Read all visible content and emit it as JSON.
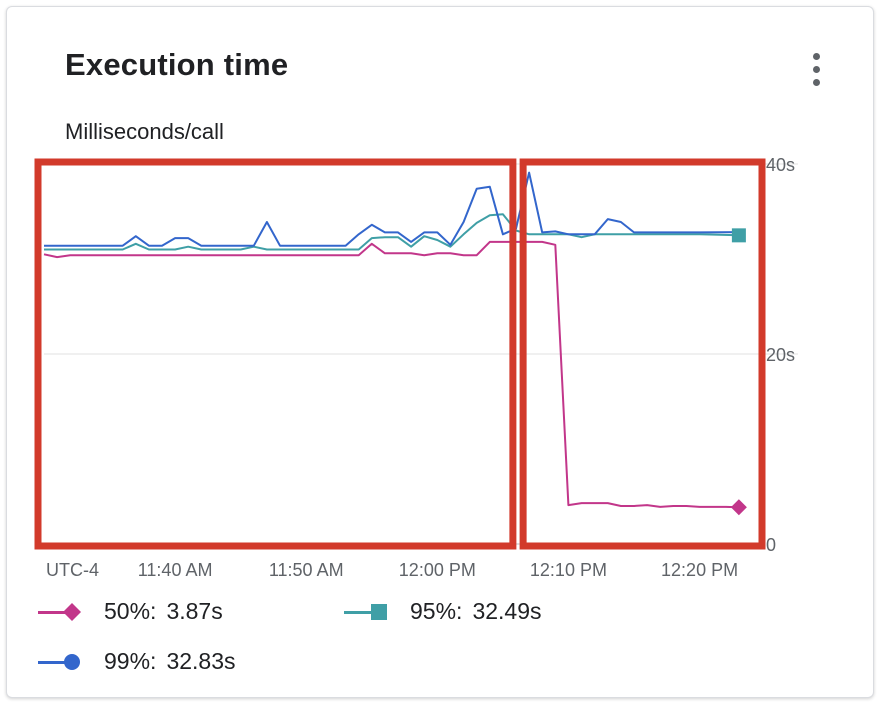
{
  "card": {
    "title": "Execution time",
    "subtitle": "Milliseconds/call",
    "menu_icon": "more-vert-icon"
  },
  "chart_data": {
    "type": "line",
    "timezone_label": "UTC-4",
    "x_range": [
      "11:30",
      "12:24"
    ],
    "x_ticks": [
      {
        "t": "11:40",
        "label": "11:40 AM"
      },
      {
        "t": "11:50",
        "label": "11:50 AM"
      },
      {
        "t": "12:00",
        "label": "12:00 PM"
      },
      {
        "t": "12:10",
        "label": "12:10 PM"
      },
      {
        "t": "12:20",
        "label": "12:20 PM"
      }
    ],
    "ylim": [
      0,
      40
    ],
    "y_ticks": [
      {
        "v": 0,
        "label": "0"
      },
      {
        "v": 20,
        "label": "20s"
      },
      {
        "v": 40,
        "label": "40s"
      }
    ],
    "grid": true,
    "legend_position": "bottom",
    "series": [
      {
        "name": "50%",
        "legend_value": "3.87s",
        "color": "#c2368a",
        "marker": "diamond",
        "points": [
          [
            "11:30",
            30.5
          ],
          [
            "11:31",
            30.2
          ],
          [
            "11:32",
            30.4
          ],
          [
            "11:40",
            30.4
          ],
          [
            "11:50",
            30.4
          ],
          [
            "11:54",
            30.4
          ],
          [
            "11:55",
            31.6
          ],
          [
            "11:56",
            30.6
          ],
          [
            "11:58",
            30.6
          ],
          [
            "11:59",
            30.4
          ],
          [
            "12:00",
            30.6
          ],
          [
            "12:01",
            30.6
          ],
          [
            "12:02",
            30.4
          ],
          [
            "12:03",
            30.4
          ],
          [
            "12:04",
            31.8
          ],
          [
            "12:06",
            31.8
          ],
          [
            "12:08",
            31.8
          ],
          [
            "12:09",
            31.5
          ],
          [
            "12:10",
            4.1
          ],
          [
            "12:11",
            4.3
          ],
          [
            "12:12",
            4.3
          ],
          [
            "12:13",
            4.3
          ],
          [
            "12:14",
            4.0
          ],
          [
            "12:15",
            4.0
          ],
          [
            "12:16",
            4.1
          ],
          [
            "12:17",
            3.9
          ],
          [
            "12:18",
            4.0
          ],
          [
            "12:19",
            4.0
          ],
          [
            "12:20",
            3.9
          ],
          [
            "12:22",
            3.9
          ],
          [
            "12:23",
            3.87
          ]
        ]
      },
      {
        "name": "95%",
        "legend_value": "32.49s",
        "color": "#3f9fa6",
        "marker": "square",
        "points": [
          [
            "11:30",
            31.0
          ],
          [
            "11:36",
            31.0
          ],
          [
            "11:37",
            31.6
          ],
          [
            "11:38",
            31.0
          ],
          [
            "11:40",
            31.0
          ],
          [
            "11:41",
            31.3
          ],
          [
            "11:42",
            31.0
          ],
          [
            "11:45",
            31.0
          ],
          [
            "11:46",
            31.3
          ],
          [
            "11:47",
            31.0
          ],
          [
            "11:54",
            31.0
          ],
          [
            "11:55",
            32.2
          ],
          [
            "11:56",
            32.3
          ],
          [
            "11:57",
            32.3
          ],
          [
            "11:58",
            31.3
          ],
          [
            "11:59",
            32.4
          ],
          [
            "12:00",
            32.0
          ],
          [
            "12:01",
            31.3
          ],
          [
            "12:02",
            32.6
          ],
          [
            "12:03",
            33.8
          ],
          [
            "12:04",
            34.6
          ],
          [
            "12:05",
            34.7
          ],
          [
            "12:06",
            33.0
          ],
          [
            "12:07",
            32.6
          ],
          [
            "12:08",
            32.6
          ],
          [
            "12:09",
            32.6
          ],
          [
            "12:10",
            32.6
          ],
          [
            "12:11",
            32.3
          ],
          [
            "12:12",
            32.6
          ],
          [
            "12:13",
            32.6
          ],
          [
            "12:15",
            32.6
          ],
          [
            "12:18",
            32.6
          ],
          [
            "12:20",
            32.6
          ],
          [
            "12:23",
            32.49
          ]
        ]
      },
      {
        "name": "99%",
        "legend_value": "32.83s",
        "color": "#3366cc",
        "marker": "circle",
        "points": [
          [
            "11:30",
            31.4
          ],
          [
            "11:36",
            31.4
          ],
          [
            "11:37",
            32.4
          ],
          [
            "11:38",
            31.4
          ],
          [
            "11:39",
            31.4
          ],
          [
            "11:40",
            32.2
          ],
          [
            "11:41",
            32.2
          ],
          [
            "11:42",
            31.4
          ],
          [
            "11:46",
            31.4
          ],
          [
            "11:47",
            33.9
          ],
          [
            "11:48",
            31.4
          ],
          [
            "11:53",
            31.4
          ],
          [
            "11:54",
            32.6
          ],
          [
            "11:55",
            33.6
          ],
          [
            "11:56",
            32.8
          ],
          [
            "11:57",
            32.8
          ],
          [
            "11:58",
            31.8
          ],
          [
            "11:59",
            32.8
          ],
          [
            "12:00",
            32.8
          ],
          [
            "12:01",
            31.5
          ],
          [
            "12:02",
            33.9
          ],
          [
            "12:03",
            37.4
          ],
          [
            "12:04",
            37.6
          ],
          [
            "12:05",
            32.6
          ],
          [
            "12:06",
            33.2
          ],
          [
            "12:07",
            39.1
          ],
          [
            "12:08",
            32.8
          ],
          [
            "12:09",
            32.9
          ],
          [
            "12:10",
            32.6
          ],
          [
            "12:11",
            32.6
          ],
          [
            "12:12",
            32.6
          ],
          [
            "12:13",
            34.2
          ],
          [
            "12:14",
            33.9
          ],
          [
            "12:15",
            32.8
          ],
          [
            "12:18",
            32.8
          ],
          [
            "12:20",
            32.8
          ],
          [
            "12:23",
            32.83
          ]
        ]
      }
    ]
  },
  "annotations": [
    {
      "name": "highlight-box-before",
      "color": "#d23a2b",
      "range": [
        "11:30",
        "12:05"
      ]
    },
    {
      "name": "highlight-box-after",
      "color": "#d23a2b",
      "range": [
        "12:07",
        "12:24"
      ]
    }
  ]
}
